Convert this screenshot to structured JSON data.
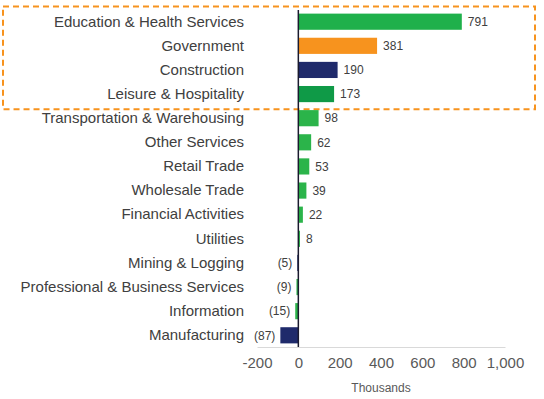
{
  "chart_data": {
    "type": "bar",
    "orientation": "horizontal",
    "categories": [
      "Education & Health Services",
      "Government",
      "Construction",
      "Leisure & Hospitality",
      "Transportation & Warehousing",
      "Other Services",
      "Retail Trade",
      "Wholesale Trade",
      "Financial Activities",
      "Utilities",
      "Mining & Logging",
      "Professional & Business Services",
      "Information",
      "Manufacturing"
    ],
    "values": [
      791,
      381,
      190,
      173,
      98,
      62,
      53,
      39,
      22,
      8,
      -5,
      -9,
      -15,
      -87
    ],
    "value_labels": [
      "791",
      "381",
      "190",
      "173",
      "98",
      "62",
      "53",
      "39",
      "22",
      "8",
      "(5)",
      "(9)",
      "(15)",
      "(87)"
    ],
    "colors": [
      "#1fb04b",
      "#f7931e",
      "#1f2a6b",
      "#0f9a47",
      "#2bb44a",
      "#2bb44a",
      "#2bb44a",
      "#2bb44a",
      "#2bb44a",
      "#2bb44a",
      "#1f2a6b",
      "#2bb44a",
      "#2bb44a",
      "#1f2a6b"
    ],
    "xlim": [
      -200,
      1000
    ],
    "xticks": [
      -200,
      0,
      200,
      400,
      600,
      800,
      {
        "value": 1000,
        "label": "1,000"
      }
    ],
    "xlabel": "Thousands",
    "data_labels": true,
    "grid": false
  }
}
